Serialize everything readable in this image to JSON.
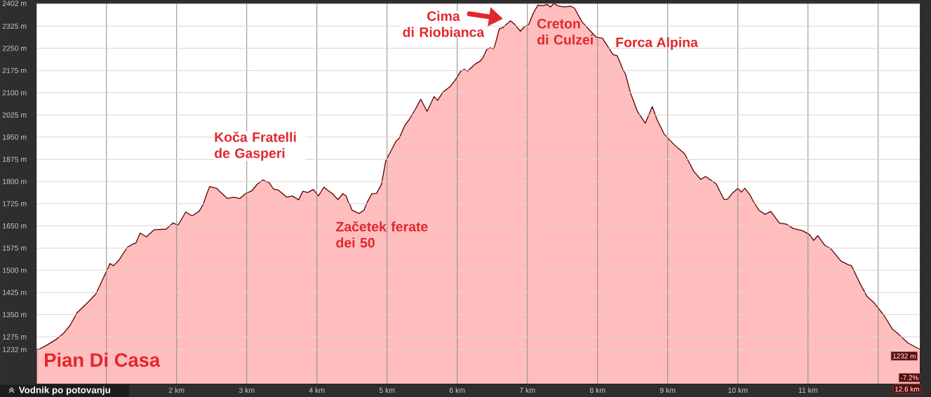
{
  "chart_data": {
    "type": "area",
    "x": [
      0,
      0.05,
      0.15,
      0.28,
      0.38,
      0.48,
      0.58,
      0.72,
      0.77,
      0.85,
      0.95,
      1.02,
      1.05,
      1.1,
      1.18,
      1.3,
      1.38,
      1.42,
      1.48,
      1.57,
      1.68,
      1.85,
      1.95,
      2.02,
      2.13,
      2.22,
      2.32,
      2.38,
      2.43,
      2.47,
      2.57,
      2.63,
      2.72,
      2.82,
      2.9,
      2.98,
      3.07,
      3.15,
      3.23,
      3.32,
      3.38,
      3.45,
      3.57,
      3.65,
      3.74,
      3.8,
      3.87,
      3.95,
      4.02,
      4.1,
      4.15,
      4.22,
      4.3,
      4.37,
      4.42,
      4.45,
      4.47,
      4.5,
      4.6,
      4.67,
      4.72,
      4.78,
      4.85,
      4.92,
      4.98,
      5.05,
      5.13,
      5.17,
      5.25,
      5.32,
      5.4,
      5.48,
      5.57,
      5.67,
      5.72,
      5.8,
      5.9,
      5.97,
      6.05,
      6.1,
      6.15,
      6.22,
      6.27,
      6.33,
      6.37,
      6.42,
      6.47,
      6.52,
      6.55,
      6.6,
      6.65,
      6.7,
      6.76,
      6.82,
      6.9,
      6.95,
      7.02,
      7.08,
      7.15,
      7.22,
      7.28,
      7.33,
      7.38,
      7.43,
      7.52,
      7.62,
      7.67,
      7.78,
      7.9,
      7.98,
      8.07,
      8.22,
      8.28,
      8.37,
      8.4,
      8.47,
      8.57,
      8.68,
      8.78,
      8.85,
      8.95,
      9.09,
      9.24,
      9.37,
      9.47,
      9.54,
      9.69,
      9.8,
      9.85,
      9.92,
      10.0,
      10.05,
      10.1,
      10.17,
      10.22,
      10.3,
      10.39,
      10.47,
      10.59,
      10.69,
      10.79,
      10.92,
      11.02,
      11.08,
      11.14,
      11.24,
      11.32,
      11.47,
      11.57,
      11.62,
      11.74,
      11.84,
      11.95,
      12.09,
      12.2,
      12.3,
      12.42,
      12.6
    ],
    "values": [
      1232,
      1234,
      1247,
      1266,
      1285,
      1313,
      1356,
      1388,
      1400,
      1420,
      1471,
      1506,
      1523,
      1515,
      1535,
      1578,
      1589,
      1592,
      1626,
      1613,
      1637,
      1639,
      1660,
      1652,
      1697,
      1684,
      1699,
      1723,
      1758,
      1783,
      1777,
      1763,
      1743,
      1747,
      1742,
      1759,
      1768,
      1791,
      1805,
      1796,
      1775,
      1771,
      1747,
      1751,
      1738,
      1767,
      1763,
      1773,
      1751,
      1781,
      1771,
      1759,
      1739,
      1759,
      1750,
      1728,
      1723,
      1703,
      1692,
      1703,
      1731,
      1758,
      1760,
      1790,
      1869,
      1901,
      1937,
      1945,
      1988,
      2011,
      2043,
      2078,
      2037,
      2087,
      2074,
      2103,
      2121,
      2142,
      2173,
      2179,
      2173,
      2189,
      2199,
      2207,
      2220,
      2246,
      2252,
      2248,
      2271,
      2316,
      2320,
      2331,
      2343,
      2331,
      2308,
      2321,
      2331,
      2367,
      2396,
      2394,
      2398,
      2390,
      2402,
      2394,
      2390,
      2392,
      2386,
      2339,
      2308,
      2288,
      2284,
      2229,
      2225,
      2174,
      2162,
      2099,
      2036,
      1997,
      2053,
      2008,
      1960,
      1925,
      1894,
      1835,
      1807,
      1817,
      1792,
      1740,
      1740,
      1760,
      1777,
      1764,
      1777,
      1756,
      1733,
      1703,
      1689,
      1699,
      1660,
      1656,
      1641,
      1634,
      1621,
      1601,
      1617,
      1584,
      1574,
      1531,
      1519,
      1515,
      1456,
      1412,
      1388,
      1345,
      1302,
      1282,
      1255,
      1232
    ],
    "color": "#ffbdbd",
    "xlim": [
      0,
      12.6
    ],
    "ylim": [
      1115,
      2402
    ],
    "xticks": [
      {
        "value": 1,
        "label": null
      },
      {
        "value": 2,
        "label": "2 km"
      },
      {
        "value": 3,
        "label": "3 km"
      },
      {
        "value": 4,
        "label": "4 km"
      },
      {
        "value": 5,
        "label": "5 km"
      },
      {
        "value": 6,
        "label": "6 km"
      },
      {
        "value": 7,
        "label": "7 km"
      },
      {
        "value": 8,
        "label": "8 km"
      },
      {
        "value": 9,
        "label": "9 km"
      },
      {
        "value": 10,
        "label": "10 km"
      },
      {
        "value": 11,
        "label": "11 km"
      },
      {
        "value": 12,
        "label": null
      }
    ],
    "yticks": [
      {
        "value": 1232,
        "label": "1232 m"
      },
      {
        "value": 1275,
        "label": "1275 m"
      },
      {
        "value": 1350,
        "label": "1350 m"
      },
      {
        "value": 1425,
        "label": "1425 m"
      },
      {
        "value": 1500,
        "label": "1500 m"
      },
      {
        "value": 1575,
        "label": "1575 m"
      },
      {
        "value": 1650,
        "label": "1650 m"
      },
      {
        "value": 1725,
        "label": "1725 m"
      },
      {
        "value": 1800,
        "label": "1800 m"
      },
      {
        "value": 1875,
        "label": "1875 m"
      },
      {
        "value": 1950,
        "label": "1950 m"
      },
      {
        "value": 2025,
        "label": "2025 m"
      },
      {
        "value": 2100,
        "label": "2100 m"
      },
      {
        "value": 2175,
        "label": "2175 m"
      },
      {
        "value": 2250,
        "label": "2250 m"
      },
      {
        "value": 2325,
        "label": "2325 m"
      },
      {
        "value": 2402,
        "label": "2402 m"
      }
    ],
    "grid": true,
    "annotations": [
      {
        "text": "Cima di Riobianca",
        "x": 6.76,
        "y": 2343
      },
      {
        "text": "Creton di Culzei",
        "x": 7.38,
        "y": 2402
      },
      {
        "text": "Forca Alpina",
        "x": 8.07,
        "y": 2284
      },
      {
        "text": "Koča Fratelli de Gasperi",
        "x": 3.23,
        "y": 1805
      },
      {
        "text": "Začetek ferate dei 50",
        "x": 4.6,
        "y": 1692
      },
      {
        "text": "Pian Di Casa",
        "x": 0,
        "y": 1232
      },
      {
        "text": "1232 m",
        "x": 12.6,
        "y": 1232
      },
      "-7.2%",
      "12.6 km",
      "Vodnik po potovanju"
    ]
  }
}
